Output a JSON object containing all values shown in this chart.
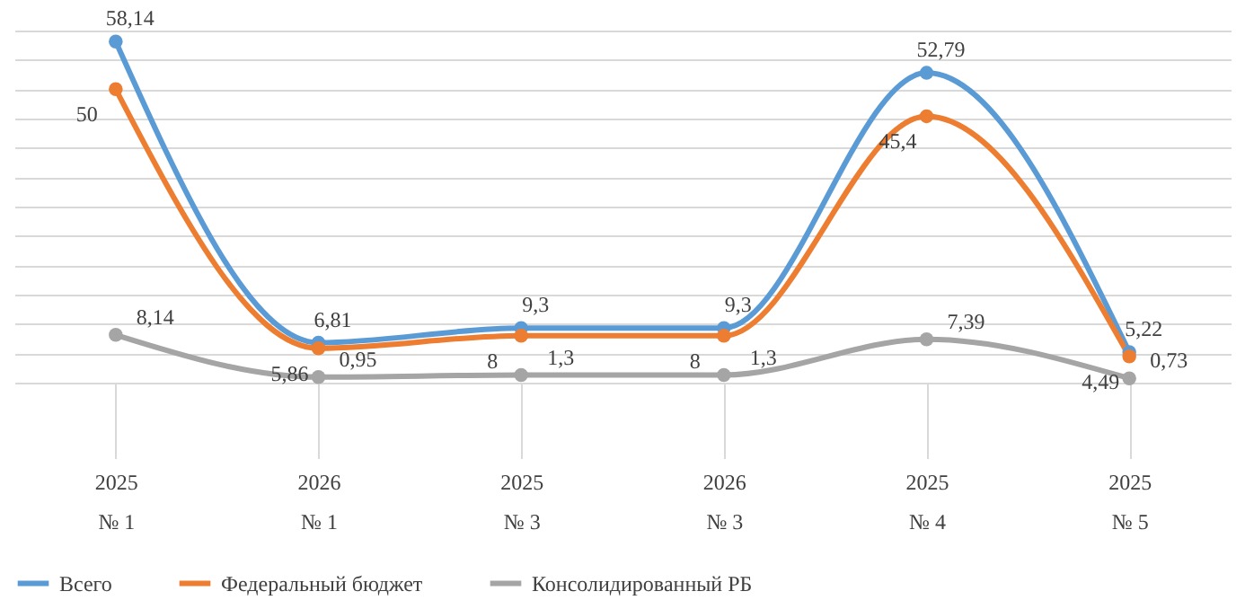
{
  "chart_data": {
    "type": "line",
    "categories": [
      "2025\n№ 1",
      "2026\n№ 1",
      "2025\n№ 3",
      "2026\n№ 3",
      "2025\n№ 4",
      "2025\n№ 5"
    ],
    "series": [
      {
        "name": "Всего",
        "color": "#5b9bd5",
        "values": [
          58.14,
          6.81,
          9.3,
          9.3,
          52.79,
          5.22
        ],
        "value_labels": [
          "58,14",
          "6,81",
          "9,3",
          "9,3",
          "52,79",
          "5,22"
        ]
      },
      {
        "name": "Федеральный бюджет",
        "color": "#ed7d31",
        "values": [
          50,
          5.86,
          8,
          8,
          45.4,
          4.49
        ],
        "value_labels": [
          "50",
          "5,86",
          "8",
          "8",
          "45,4",
          "4,49"
        ]
      },
      {
        "name": "Консолидированный РБ",
        "color": "#a5a5a5",
        "values": [
          8.14,
          0.95,
          1.3,
          1.3,
          7.39,
          0.73
        ],
        "value_labels": [
          "8,14",
          "0,95",
          "1,3",
          "1,3",
          "7,39",
          "0,73"
        ]
      }
    ],
    "grid": "y",
    "legend": "bottom",
    "marker": "circle",
    "line_style": "solid",
    "tick_labels": "x"
  }
}
